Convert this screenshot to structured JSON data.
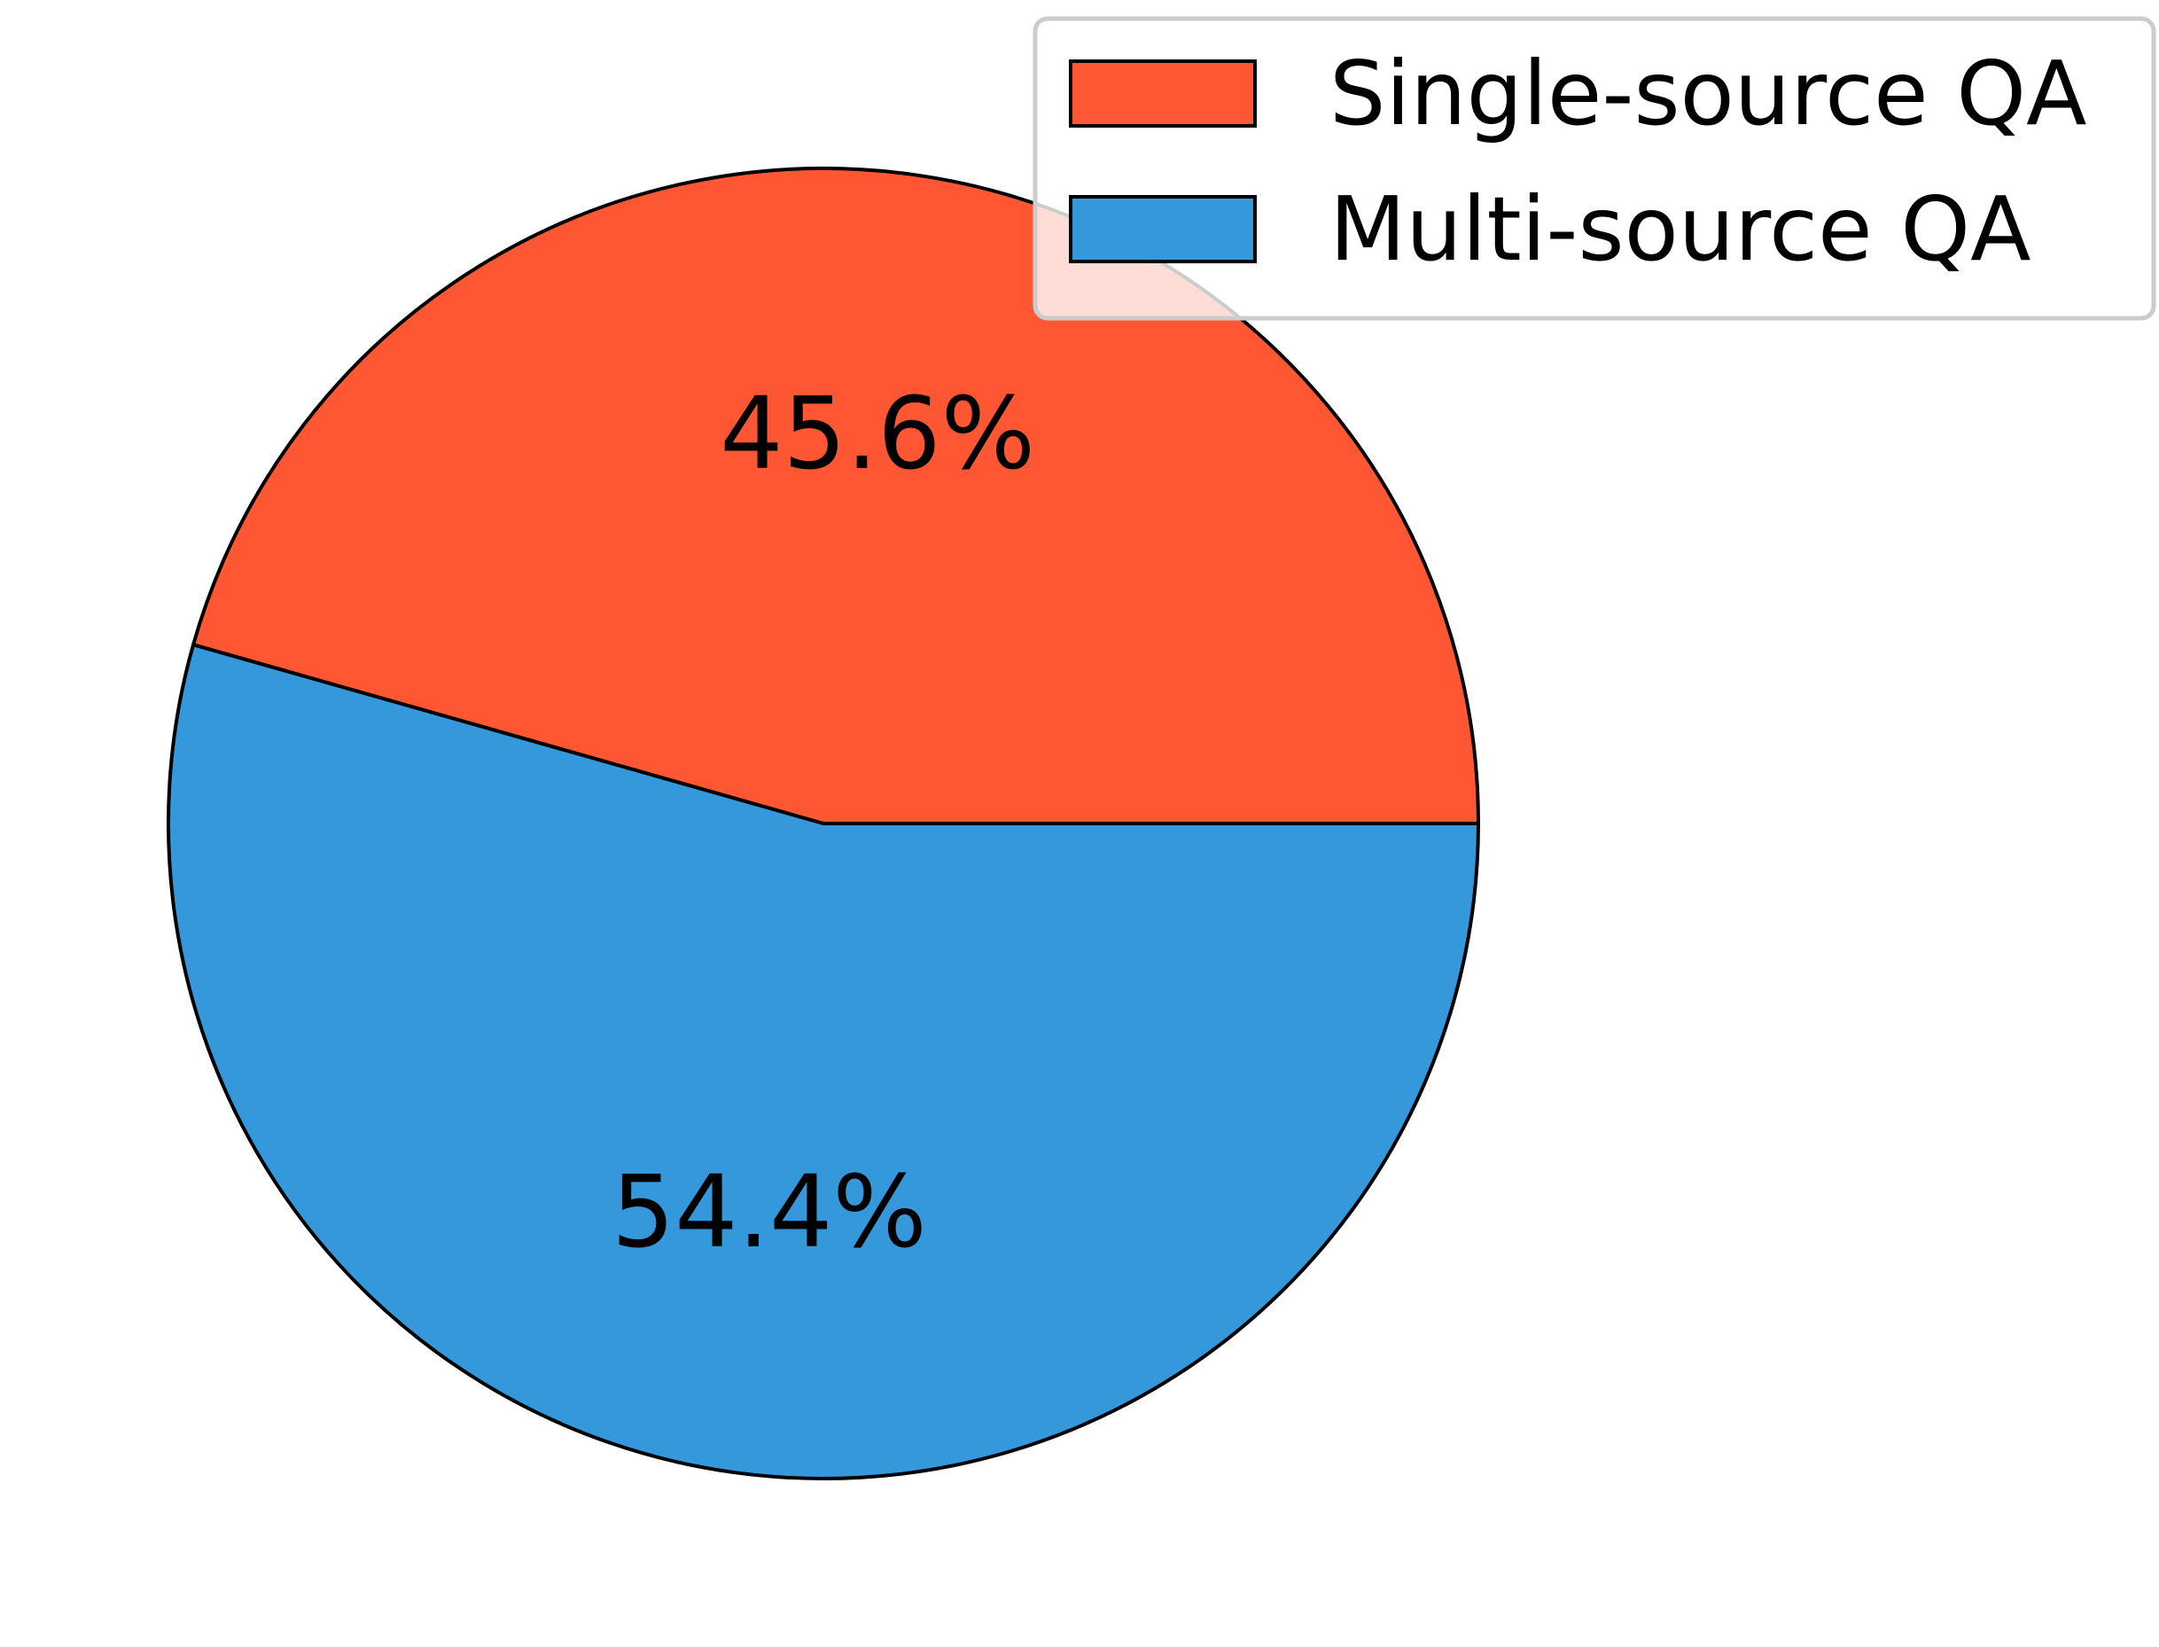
{
  "chart_data": {
    "type": "pie",
    "slices": [
      {
        "label": "Single-source QA",
        "percent": 45.6,
        "display": "45.6%",
        "color": "#FF5733"
      },
      {
        "label": "Multi-source QA",
        "percent": 54.4,
        "display": "54.4%",
        "color": "#3498DB"
      }
    ],
    "start_angle_deg": 0,
    "direction": "counterclockwise",
    "edge_color": "#000000",
    "legend": {
      "position": "upper-right"
    }
  }
}
